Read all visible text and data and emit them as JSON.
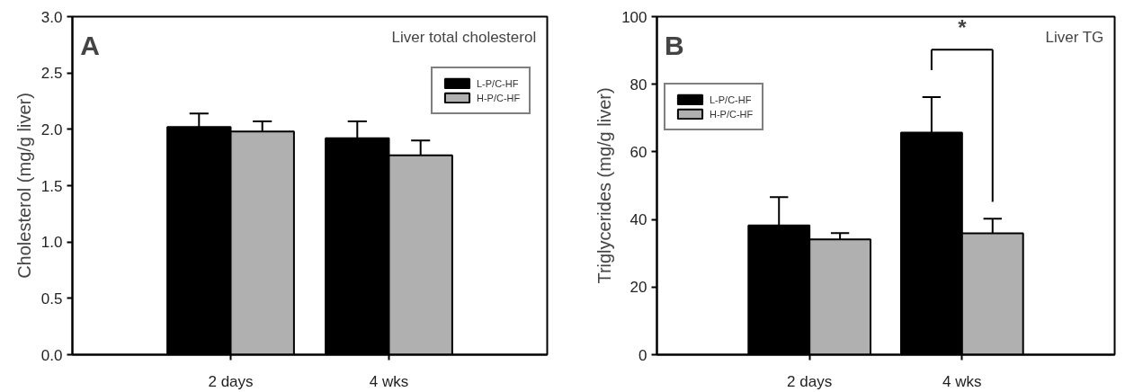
{
  "chart_data": [
    {
      "type": "bar",
      "ylabel": "Cholesterol (mg/g liver)",
      "categories": [
        "2 days",
        "4 wks"
      ],
      "series": [
        {
          "name": "L-P/C-HF",
          "color": "#000000",
          "values": [
            2.02,
            1.92
          ],
          "errors": [
            [
              2.02,
              2.14
            ],
            [
              1.92,
              2.07
            ]
          ]
        },
        {
          "name": "H-P/C-HF",
          "color": "#b0b0b0",
          "values": [
            1.98,
            1.77
          ],
          "errors": [
            [
              1.98,
              2.07
            ],
            [
              1.77,
              1.9
            ]
          ]
        }
      ],
      "ylim": [
        0,
        3
      ],
      "yticks": [
        {
          "value": 0,
          "label": "0.0"
        },
        {
          "value": 0.5,
          "label": "0.5"
        },
        {
          "value": 1,
          "label": "1.0"
        },
        {
          "value": 1.5,
          "label": "1.5"
        },
        {
          "value": 2,
          "label": "2.0"
        },
        {
          "value": 2.5,
          "label": "2.5"
        },
        {
          "value": 3,
          "label": "3.0"
        }
      ],
      "annotations": [
        "A",
        "Liver total cholesterol"
      ],
      "legend": "top right",
      "grid": false
    },
    {
      "type": "bar",
      "ylabel": "Triglycerides (mg/g liver)",
      "categories": [
        "2 days",
        "4 wks"
      ],
      "series": [
        {
          "name": "L-P/C-HF",
          "color": "#000000",
          "values": [
            38.2,
            65.7
          ],
          "errors": [
            [
              38.2,
              46.6
            ],
            [
              65.7,
              76.2
            ]
          ]
        },
        {
          "name": "H-P/C-HF",
          "color": "#b0b0b0",
          "values": [
            34.1,
            35.9
          ],
          "errors": [
            [
              34.1,
              36.0
            ],
            [
              35.9,
              40.2
            ]
          ]
        }
      ],
      "ylim": [
        0,
        100
      ],
      "yticks": [
        0,
        20,
        40,
        60,
        80,
        100
      ],
      "annotations": [
        "B",
        "Liver TG",
        "*"
      ],
      "legend": "top left",
      "grid": false
    }
  ]
}
